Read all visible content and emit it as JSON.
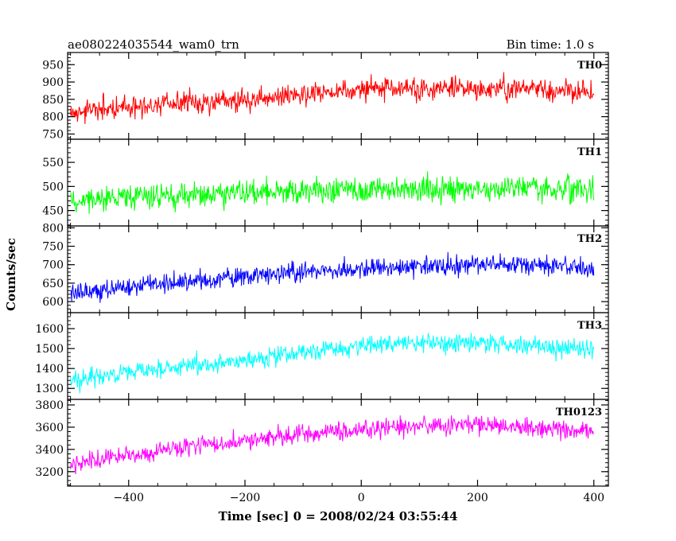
{
  "header": {
    "left_title": "ae080224035544_wam0_trn",
    "right_title": "Bin time: 1.0 s"
  },
  "chart_data": {
    "type": "line",
    "xlabel": "Time [sec] 0 = 2008/02/24 03:55:44",
    "ylabel": "Counts/sec",
    "xlim": [
      -505,
      425
    ],
    "x_ticks": [
      -400,
      -200,
      0,
      200,
      400
    ],
    "x_tick_labels": [
      "−400",
      "−200",
      "0",
      "200",
      "400"
    ],
    "grid": false,
    "panels": [
      {
        "name": "TH0",
        "color": "#ff0000",
        "ylim": [
          735,
          985
        ],
        "y_ticks": [
          750,
          800,
          850,
          900,
          950
        ],
        "trend_x": [
          -500,
          -400,
          -300,
          -200,
          -100,
          0,
          100,
          200,
          300,
          400
        ],
        "trend_y": [
          810,
          830,
          840,
          850,
          865,
          878,
          880,
          880,
          880,
          870
        ],
        "noise": 30
      },
      {
        "name": "TH1",
        "color": "#00ff00",
        "ylim": [
          418,
          598
        ],
        "y_ticks": [
          450,
          500,
          550
        ],
        "trend_x": [
          -500,
          -400,
          -300,
          -200,
          -100,
          0,
          100,
          200,
          300,
          400
        ],
        "trend_y": [
          470,
          478,
          483,
          488,
          490,
          493,
          494,
          495,
          495,
          495
        ],
        "noise": 24
      },
      {
        "name": "TH2",
        "color": "#0000ff",
        "ylim": [
          570,
          805
        ],
        "y_ticks": [
          600,
          650,
          700,
          750,
          800
        ],
        "trend_x": [
          -500,
          -400,
          -300,
          -200,
          -100,
          0,
          100,
          200,
          300,
          400
        ],
        "trend_y": [
          625,
          640,
          655,
          665,
          680,
          690,
          695,
          700,
          700,
          690
        ],
        "noise": 24
      },
      {
        "name": "TH3",
        "color": "#00ffff",
        "ylim": [
          1245,
          1680
        ],
        "y_ticks": [
          1300,
          1400,
          1500,
          1600
        ],
        "trend_x": [
          -500,
          -400,
          -300,
          -200,
          -100,
          0,
          100,
          200,
          300,
          400
        ],
        "trend_y": [
          1340,
          1380,
          1410,
          1440,
          1480,
          1510,
          1530,
          1525,
          1510,
          1500
        ],
        "noise": 45
      },
      {
        "name": "TH0123",
        "color": "#ff00ff",
        "ylim": [
          3070,
          3850
        ],
        "y_ticks": [
          3200,
          3400,
          3600,
          3800
        ],
        "trend_x": [
          -500,
          -400,
          -300,
          -200,
          -100,
          0,
          100,
          200,
          300,
          400
        ],
        "trend_y": [
          3270,
          3340,
          3420,
          3480,
          3540,
          3580,
          3610,
          3620,
          3600,
          3550
        ],
        "noise": 75
      }
    ]
  }
}
